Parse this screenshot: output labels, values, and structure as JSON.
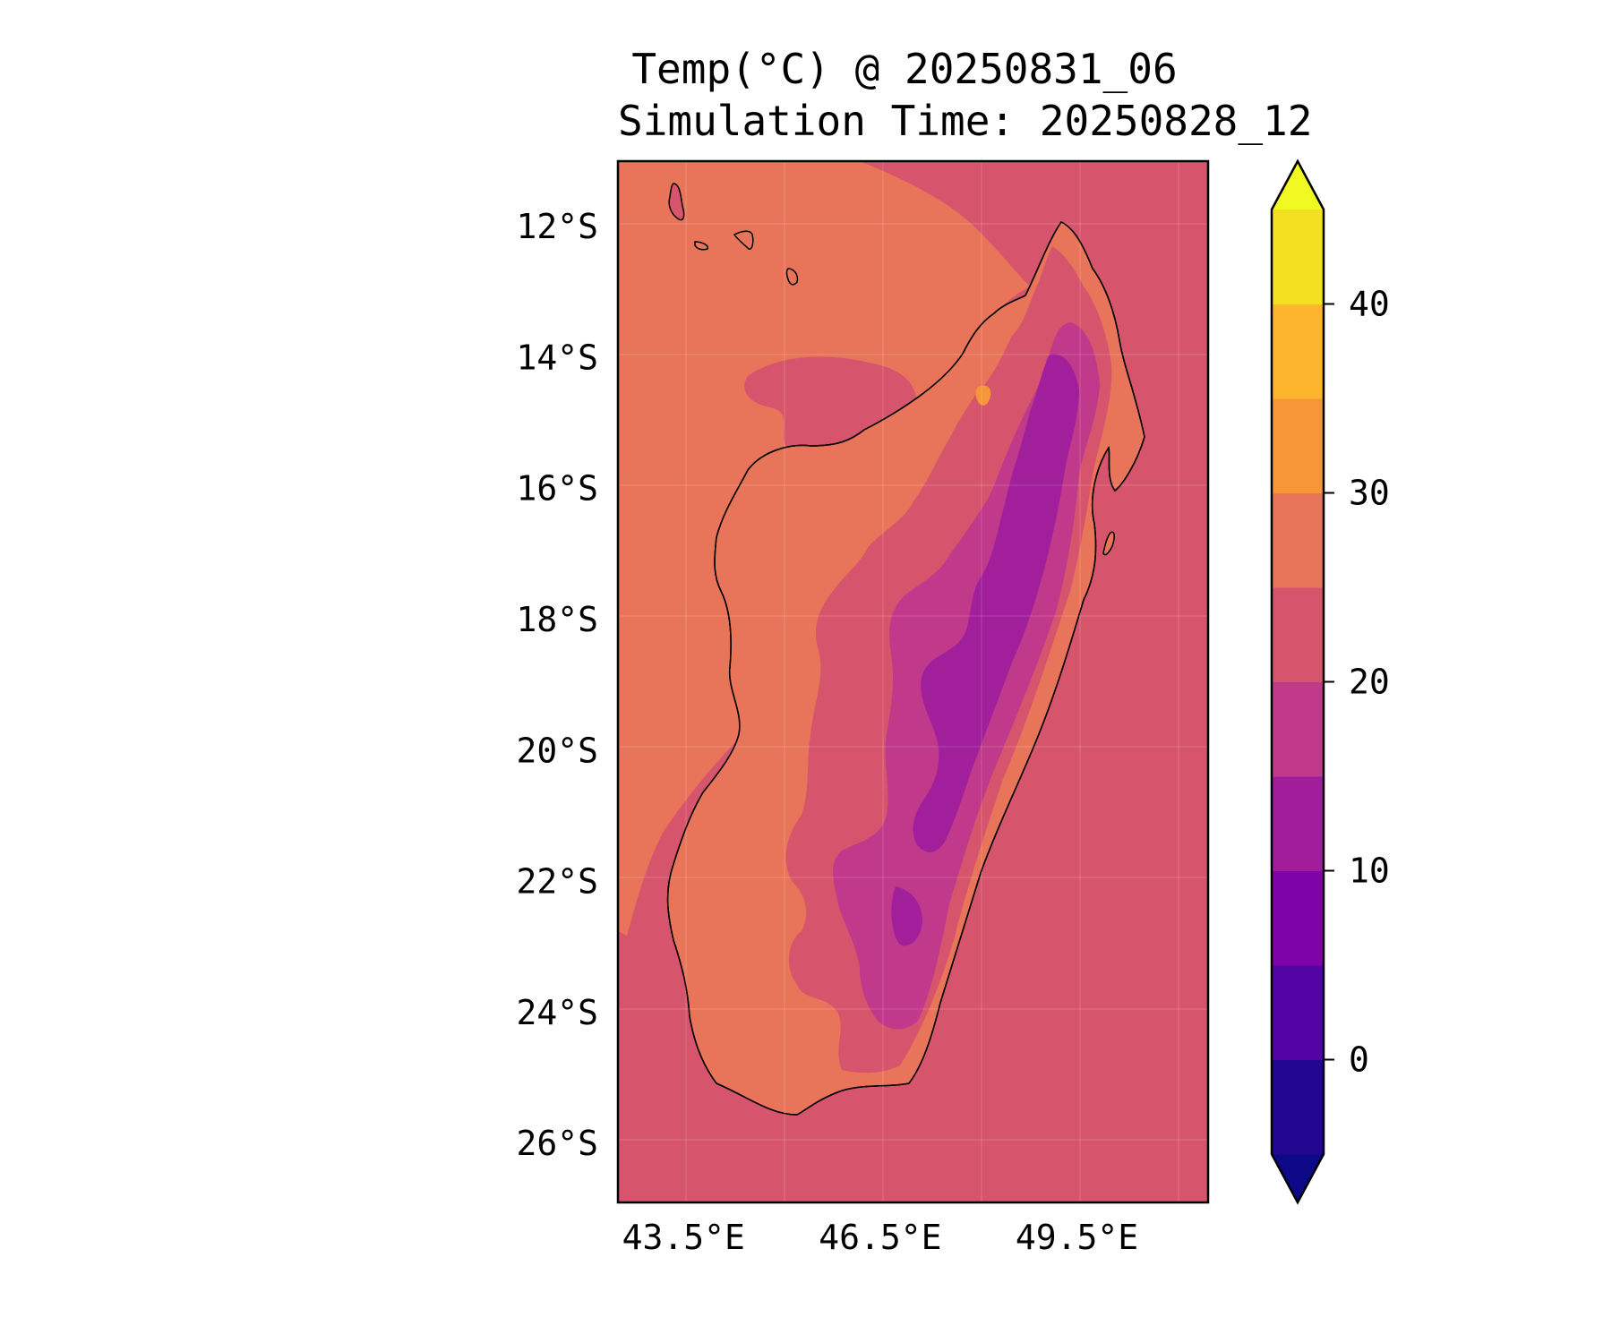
{
  "title": {
    "line1": "Temp(°C) @ 20250831_06",
    "line2": "Simulation Time: 20250828_12"
  },
  "map": {
    "region": "Madagascar",
    "lon_range": [
      42.5,
      51.5
    ],
    "lat_range": [
      -26.9,
      -11.0
    ],
    "lat_ticks": [
      {
        "value": -12,
        "label": "12°S"
      },
      {
        "value": -14,
        "label": "14°S"
      },
      {
        "value": -16,
        "label": "16°S"
      },
      {
        "value": -18,
        "label": "18°S"
      },
      {
        "value": -20,
        "label": "20°S"
      },
      {
        "value": -22,
        "label": "22°S"
      },
      {
        "value": -24,
        "label": "24°S"
      },
      {
        "value": -26,
        "label": "26°S"
      }
    ],
    "lon_ticks": [
      {
        "value": 43.5,
        "label": "43.5°E"
      },
      {
        "value": 46.5,
        "label": "46.5°E"
      },
      {
        "value": 49.5,
        "label": "49.5°E"
      }
    ],
    "colors": {
      "ocean_20_25": "#d6556d",
      "band_25_30": "#e8755a",
      "band_15_20": "#c0398a",
      "band_10_15": "#a21f9c",
      "band_30_35": "#f79539"
    }
  },
  "colorbar": {
    "levels": [
      -5,
      0,
      5,
      10,
      15,
      20,
      25,
      30,
      35,
      40,
      45
    ],
    "tick_labels": [
      {
        "value": 0,
        "label": "0"
      },
      {
        "value": 10,
        "label": "10"
      },
      {
        "value": 20,
        "label": "20"
      },
      {
        "value": 30,
        "label": "30"
      },
      {
        "value": 40,
        "label": "40"
      }
    ],
    "colors": [
      "#220690",
      "#5302a3",
      "#7e03a8",
      "#a21d9a",
      "#c0398a",
      "#d6556d",
      "#e8755a",
      "#f79539",
      "#fcb52c",
      "#f3e021"
    ],
    "under_color": "#0d0887",
    "over_color": "#f0f921"
  }
}
